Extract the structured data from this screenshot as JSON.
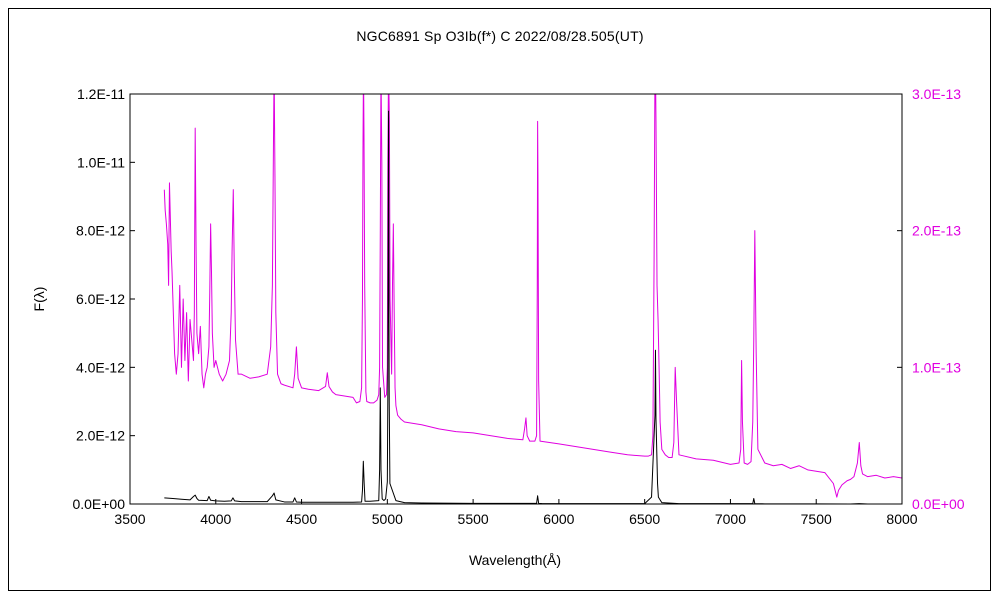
{
  "chart_data": {
    "type": "line",
    "title": "NGC6891   Sp O3Ib(f*) C   2022/08/28.505(UT)",
    "xlabel": "Wavelength(Å)",
    "ylabel": "F(λ)",
    "xlim": [
      3500,
      8000
    ],
    "ylim_left": [
      0,
      1.2e-11
    ],
    "ylim_right": [
      0,
      3e-13
    ],
    "x_ticks": [
      "3500",
      "4000",
      "4500",
      "5000",
      "5500",
      "6000",
      "6500",
      "7000",
      "7500",
      "8000"
    ],
    "y_ticks_left": [
      "0.0E+00",
      "2.0E-12",
      "4.0E-12",
      "6.0E-12",
      "8.0E-12",
      "1.0E-11",
      "1.2E-11"
    ],
    "y_ticks_right": [
      "0.0E+00",
      "1.0E-13",
      "2.0E-13",
      "3.0E-13"
    ],
    "grid": false,
    "series": [
      {
        "axis": "left",
        "color": "#000000",
        "x": [
          3700,
          3750,
          3800,
          3850,
          3870,
          3880,
          3890,
          3900,
          3950,
          3960,
          3970,
          4000,
          4050,
          4090,
          4100,
          4110,
          4150,
          4200,
          4300,
          4330,
          4340,
          4350,
          4400,
          4450,
          4460,
          4470,
          4500,
          4600,
          4700,
          4800,
          4850,
          4855,
          4860,
          4865,
          4870,
          4900,
          4950,
          4955,
          4959,
          4963,
          4970,
          4980,
          4990,
          5000,
          5003,
          5007,
          5011,
          5015,
          5050,
          5100,
          5200,
          5500,
          5870,
          5876,
          5882,
          5900,
          6000,
          6200,
          6500,
          6540,
          6560,
          6563,
          6566,
          6575,
          6580,
          6600,
          6700,
          7000,
          7130,
          7136,
          7142,
          7200,
          7500,
          7700,
          7750,
          7800,
          8000
        ],
        "y": [
          1.8e-13,
          1.6e-13,
          1.4e-13,
          1.2e-13,
          2.2e-13,
          2.6e-13,
          1.6e-13,
          1.1e-13,
          1e-13,
          2.2e-13,
          1.1e-13,
          9e-14,
          8e-14,
          9e-14,
          1.8e-13,
          9e-14,
          7e-14,
          7e-14,
          7e-14,
          2.4e-13,
          3.2e-13,
          1.2e-13,
          6e-14,
          6e-14,
          1.8e-13,
          6e-14,
          5e-14,
          5e-14,
          5e-14,
          5e-14,
          6e-14,
          4e-13,
          1.25e-12,
          6e-13,
          8e-14,
          8e-14,
          1e-13,
          1e-12,
          3.4e-12,
          1e-12,
          1.5e-13,
          1e-13,
          1.5e-13,
          6.5e-13,
          3.2e-12,
          1.15e-11,
          3e-12,
          6e-13,
          1e-13,
          4e-14,
          3e-14,
          2e-14,
          2e-14,
          2.4e-13,
          2e-14,
          1.5e-14,
          1e-14,
          1e-14,
          1e-14,
          2e-13,
          2.6e-12,
          4.5e-12,
          2.5e-12,
          6e-13,
          2e-13,
          4e-14,
          1e-14,
          1e-14,
          1e-14,
          1.6e-13,
          1e-14,
          5e-15,
          5e-15,
          0.0,
          1e-14,
          0.0,
          0.0
        ]
      },
      {
        "axis": "right",
        "color": "#e000e0",
        "x": [
          3700,
          3705,
          3712,
          3720,
          3725,
          3730,
          3740,
          3745,
          3750,
          3760,
          3770,
          3780,
          3790,
          3800,
          3810,
          3820,
          3830,
          3840,
          3850,
          3860,
          3870,
          3875,
          3880,
          3885,
          3890,
          3900,
          3910,
          3920,
          3930,
          3940,
          3950,
          3960,
          3965,
          3970,
          3975,
          3980,
          3990,
          4000,
          4020,
          4040,
          4060,
          4080,
          4090,
          4095,
          4102,
          4108,
          4115,
          4130,
          4150,
          4200,
          4250,
          4300,
          4320,
          4330,
          4336,
          4340,
          4345,
          4350,
          4360,
          4380,
          4400,
          4450,
          4460,
          4470,
          4480,
          4500,
          4540,
          4600,
          4640,
          4650,
          4660,
          4680,
          4700,
          4750,
          4800,
          4820,
          4840,
          4850,
          4855,
          4858,
          4861,
          4864,
          4868,
          4875,
          4880,
          4900,
          4920,
          4940,
          4950,
          4955,
          4959,
          4963,
          4968,
          4972,
          4985,
          4995,
          5000,
          5003,
          5007,
          5012,
          5016,
          5025,
          5030,
          5035,
          5040,
          5045,
          5050,
          5060,
          5080,
          5100,
          5200,
          5300,
          5400,
          5500,
          5600,
          5700,
          5790,
          5800,
          5808,
          5815,
          5830,
          5860,
          5870,
          5874,
          5876,
          5878,
          5882,
          5890,
          6000,
          6100,
          6200,
          6300,
          6400,
          6500,
          6520,
          6540,
          6548,
          6555,
          6560,
          6563,
          6566,
          6572,
          6578,
          6584,
          6590,
          6600,
          6620,
          6640,
          6660,
          6670,
          6678,
          6686,
          6700,
          6800,
          6900,
          7000,
          7050,
          7060,
          7065,
          7070,
          7080,
          7100,
          7120,
          7130,
          7136,
          7142,
          7150,
          7160,
          7200,
          7250,
          7300,
          7350,
          7400,
          7450,
          7500,
          7550,
          7600,
          7620,
          7630,
          7650,
          7680,
          7700,
          7720,
          7740,
          7751,
          7760,
          7770,
          7800,
          7850,
          7900,
          7950,
          8000
        ],
        "y": [
          2.3e-13,
          2.15e-13,
          2.05e-13,
          1.9e-13,
          1.6e-13,
          2.35e-13,
          1.85e-13,
          1.7e-13,
          1.5e-13,
          1.1e-13,
          9.5e-14,
          1.1e-13,
          1.6e-13,
          1e-13,
          1.5e-13,
          1.05e-13,
          1.4e-13,
          9e-14,
          1.35e-13,
          1.2e-13,
          1.05e-13,
          1.4e-13,
          2.75e-13,
          1.9e-13,
          1.25e-13,
          1.1e-13,
          1.3e-13,
          9.5e-14,
          8.5e-14,
          9.5e-14,
          1e-13,
          1.15e-13,
          1.55e-13,
          2.05e-13,
          1.7e-13,
          1.25e-13,
          1e-13,
          1.05e-13,
          9.5e-14,
          9e-14,
          9.5e-14,
          1.05e-13,
          1.4e-13,
          1.85e-13,
          2.3e-13,
          1.7e-13,
          1.2e-13,
          9.5e-14,
          9.5e-14,
          9.2e-14,
          9.3e-14,
          9.5e-14,
          1.15e-13,
          1.6e-13,
          2.6e-13,
          3.2e-13,
          2.4e-13,
          1.4e-13,
          9.5e-14,
          8.8e-14,
          8.7e-14,
          8.5e-14,
          9.5e-14,
          1.15e-13,
          9.2e-14,
          8.5e-14,
          8.4e-14,
          8.3e-14,
          8.6e-14,
          9.6e-14,
          8.6e-14,
          8.2e-14,
          8e-14,
          7.9e-14,
          7.8e-14,
          7.4e-14,
          7.5e-14,
          8.5e-14,
          1.5e-13,
          2.6e-13,
          3.2e-13,
          2.7e-13,
          1.6e-13,
          8.2e-14,
          7.5e-14,
          7.4e-14,
          7.4e-14,
          7.6e-14,
          8e-14,
          1e-13,
          2e-13,
          3.2e-13,
          2.5e-13,
          1e-13,
          7.8e-14,
          8e-14,
          1e-13,
          2.5e-13,
          3.2e-13,
          2.8e-13,
          1.5e-13,
          9.5e-14,
          1.6e-13,
          2.05e-13,
          1.4e-13,
          8.5e-14,
          7.2e-14,
          6.5e-14,
          6.2e-14,
          6e-14,
          5.8e-14,
          5.5e-14,
          5.3e-14,
          5.2e-14,
          5e-14,
          4.8e-14,
          4.7e-14,
          5.5e-14,
          6.3e-14,
          5e-14,
          4.6e-14,
          4.6e-14,
          5e-14,
          1.6e-13,
          2.8e-13,
          2.4e-13,
          9e-14,
          4.6e-14,
          4.4e-14,
          4.2e-14,
          4e-14,
          3.8e-14,
          3.6e-14,
          3.5e-14,
          3.5e-14,
          3.6e-14,
          5e-14,
          1.8e-13,
          3.2e-13,
          3.2e-13,
          2.8e-13,
          1.6e-13,
          1.35e-13,
          1e-13,
          6e-14,
          4e-14,
          3.6e-14,
          3.4e-14,
          3.4e-14,
          4.5e-14,
          1e-13,
          7.5e-14,
          3.6e-14,
          3.3e-14,
          3.2e-14,
          2.9e-14,
          3e-14,
          4e-14,
          1.05e-13,
          6e-14,
          3e-14,
          2.9e-14,
          3.1e-14,
          6e-14,
          1.2e-13,
          2e-13,
          1.1e-13,
          4e-14,
          3e-14,
          2.8e-14,
          2.9e-14,
          2.6e-14,
          2.8e-14,
          2.5e-14,
          2.4e-14,
          2.3e-14,
          1.5e-14,
          5e-15,
          1e-14,
          1.4e-14,
          1.7e-14,
          1.8e-14,
          2e-14,
          3e-14,
          4.5e-14,
          2.8e-14,
          2.2e-14,
          2e-14,
          2.1e-14,
          1.9e-14,
          2e-14,
          1.9e-14
        ]
      }
    ]
  }
}
